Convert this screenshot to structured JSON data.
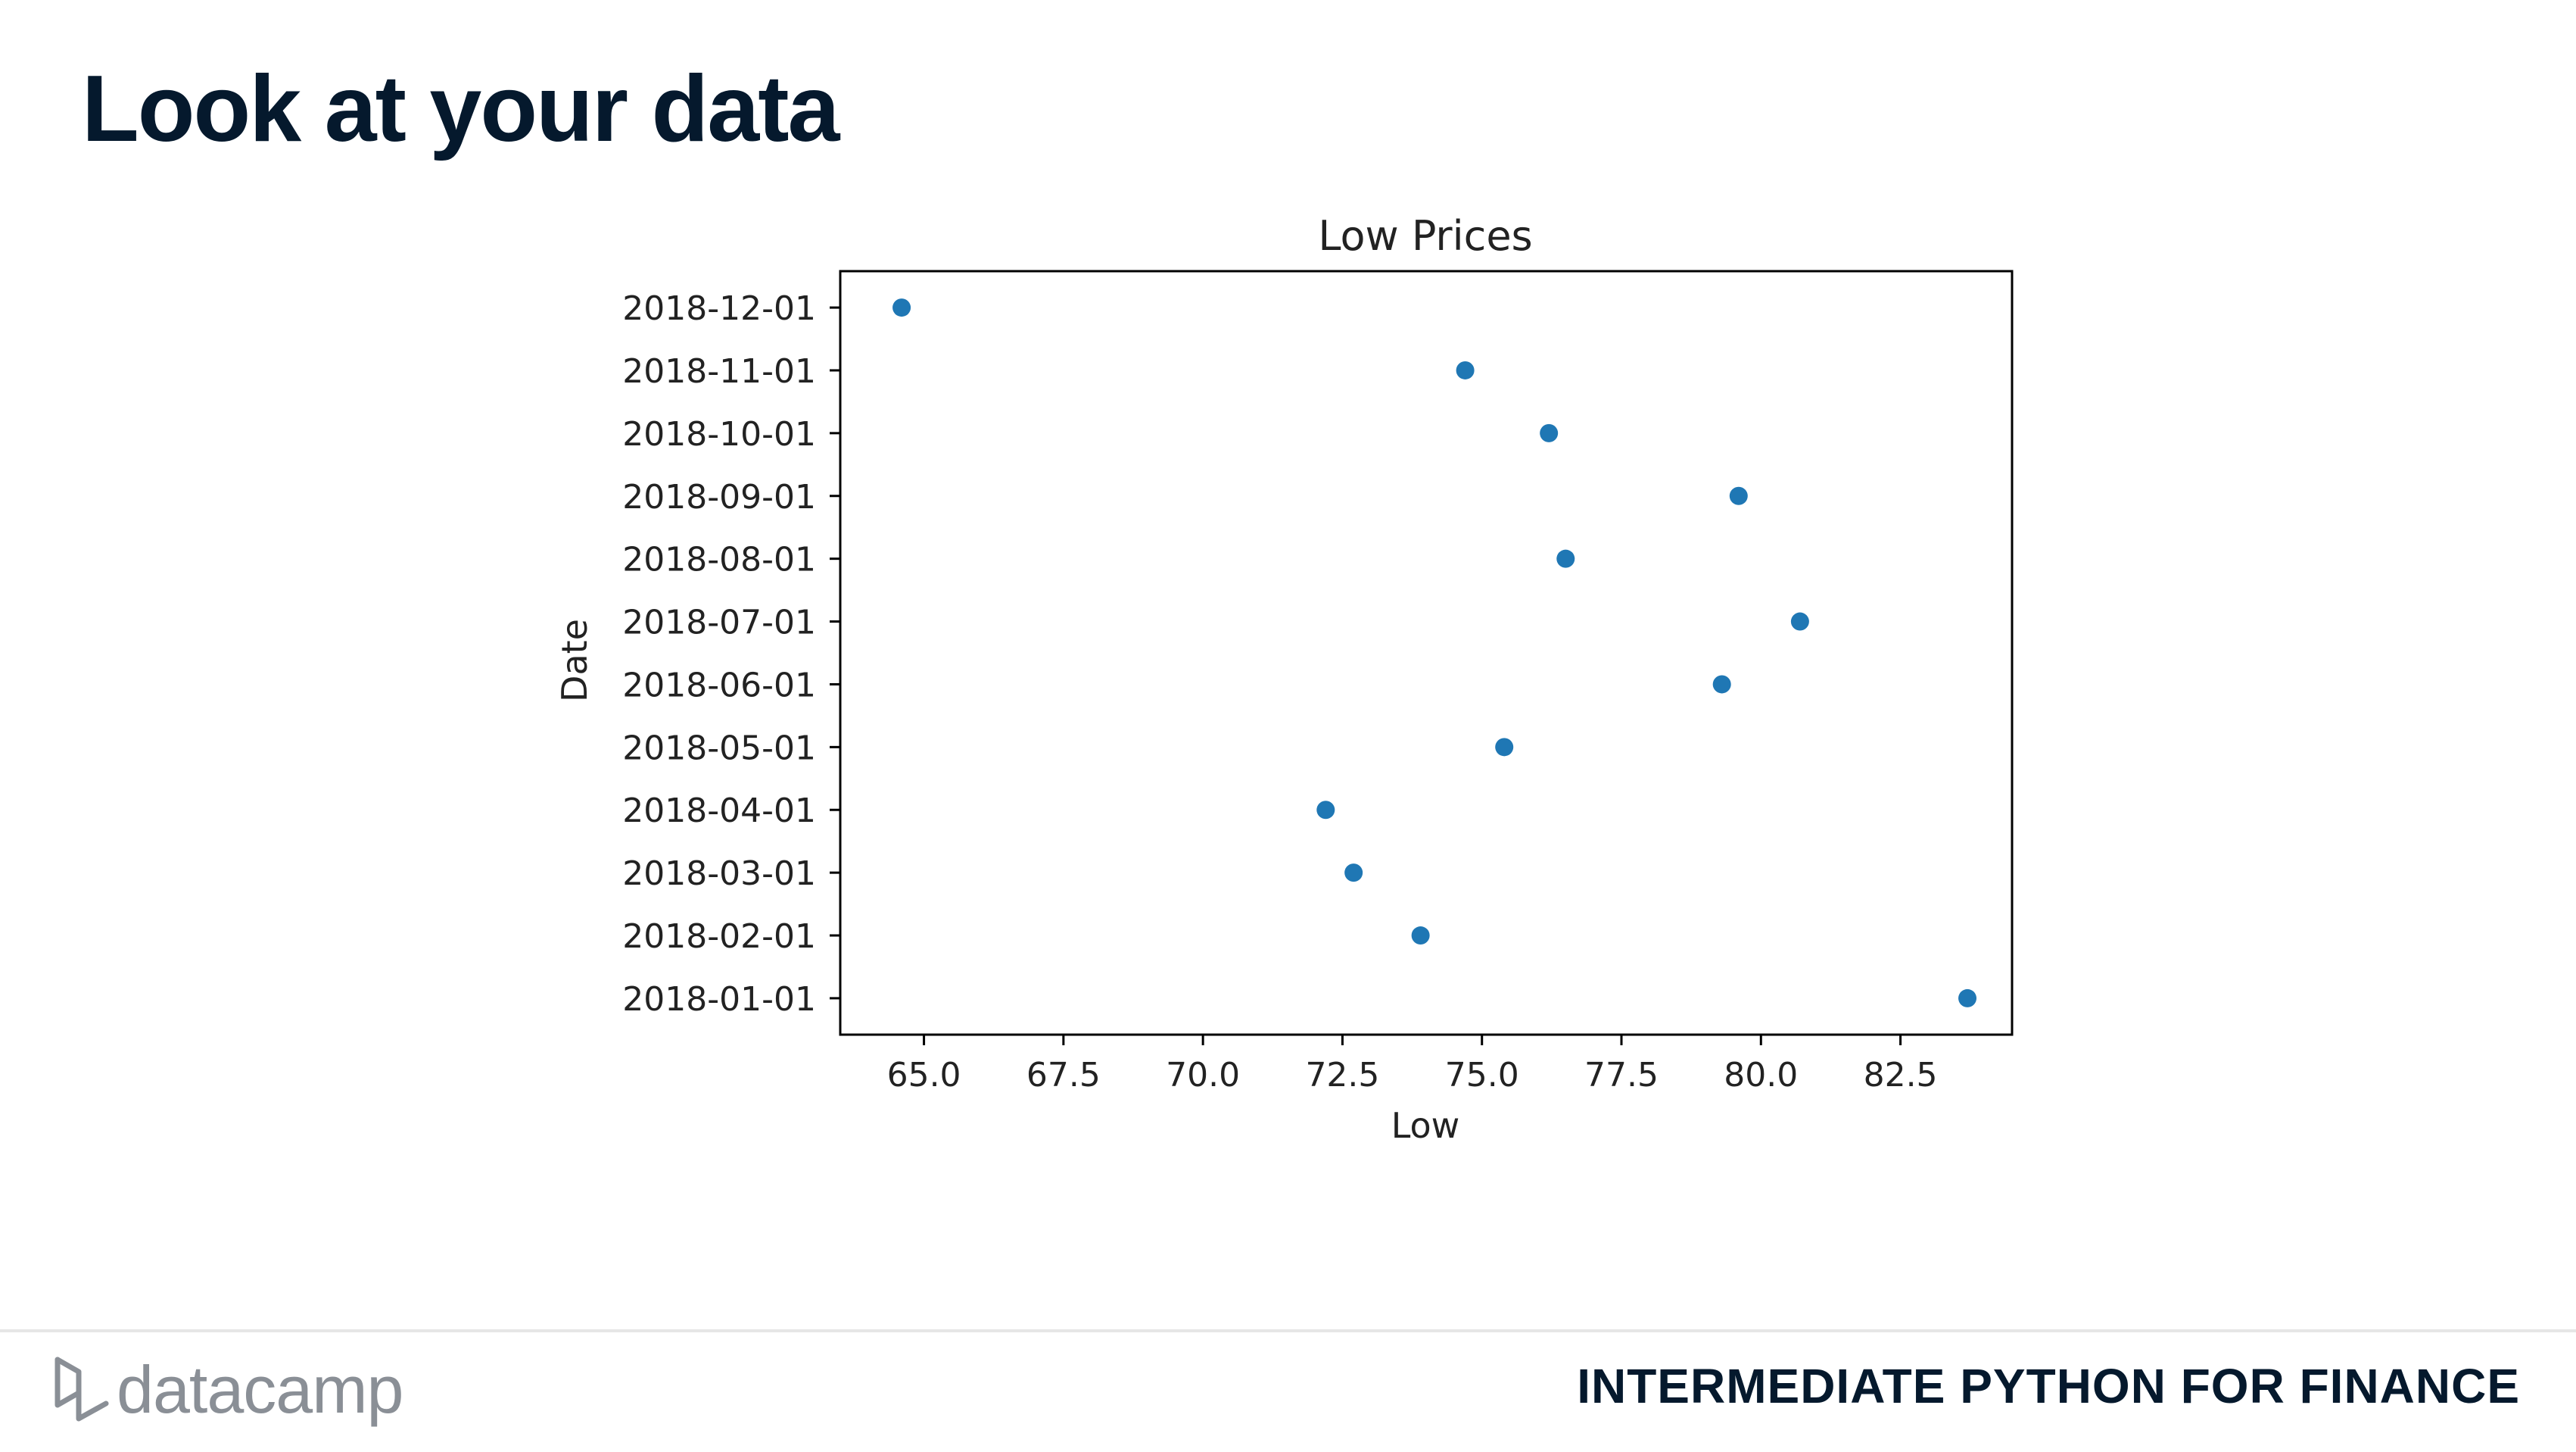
{
  "slide": {
    "title": "Look at your data",
    "course": "INTERMEDIATE PYTHON FOR FINANCE",
    "logo_text": "datacamp",
    "logo_icon": "datacamp-logo-icon"
  },
  "chart_data": {
    "type": "scatter",
    "title": "Low Prices",
    "xlabel": "Low",
    "ylabel": "Date",
    "xlim": [
      63.5,
      84.5
    ],
    "xticks": [
      65.0,
      67.5,
      70.0,
      72.5,
      75.0,
      77.5,
      80.0,
      82.5
    ],
    "xtick_labels": [
      "65.0",
      "67.5",
      "70.0",
      "72.5",
      "75.0",
      "77.5",
      "80.0",
      "82.5"
    ],
    "y_categories": [
      "2018-01-01",
      "2018-02-01",
      "2018-03-01",
      "2018-04-01",
      "2018-05-01",
      "2018-06-01",
      "2018-07-01",
      "2018-08-01",
      "2018-09-01",
      "2018-10-01",
      "2018-11-01",
      "2018-12-01"
    ],
    "points": [
      {
        "date": "2018-01-01",
        "low": 83.7
      },
      {
        "date": "2018-02-01",
        "low": 73.9
      },
      {
        "date": "2018-03-01",
        "low": 72.7
      },
      {
        "date": "2018-04-01",
        "low": 72.2
      },
      {
        "date": "2018-05-01",
        "low": 75.4
      },
      {
        "date": "2018-06-01",
        "low": 79.3
      },
      {
        "date": "2018-07-01",
        "low": 80.7
      },
      {
        "date": "2018-08-01",
        "low": 76.5
      },
      {
        "date": "2018-09-01",
        "low": 79.6
      },
      {
        "date": "2018-10-01",
        "low": 76.2
      },
      {
        "date": "2018-11-01",
        "low": 74.7
      },
      {
        "date": "2018-12-01",
        "low": 64.6
      }
    ],
    "marker_color": "#1f77b4",
    "grid": false,
    "legend": "none"
  }
}
